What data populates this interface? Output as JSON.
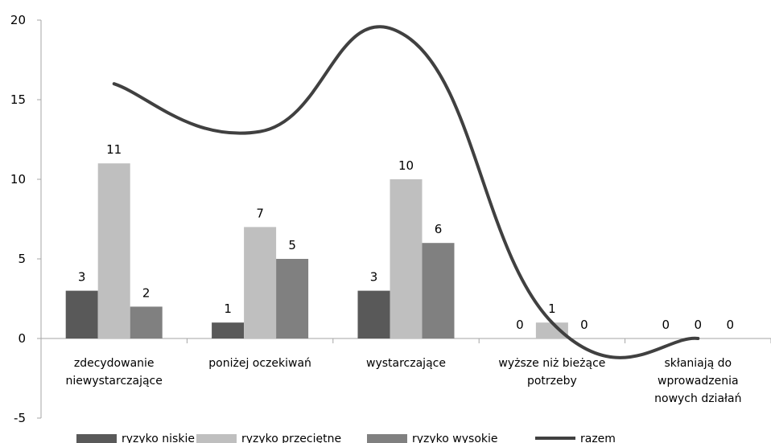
{
  "colors": {
    "ryzyko_niskie": "#595959",
    "ryzyko_przecietne": "#bfbfbf",
    "ryzyko_wysokie": "#808080",
    "razem": "#404040",
    "axis": "#a6a6a6"
  },
  "chart_data": {
    "type": "bar",
    "title": "",
    "xlabel": "",
    "ylabel": "",
    "ylim": [
      -5,
      20
    ],
    "yticks": [
      "-5",
      "0",
      "5",
      "10",
      "15",
      "20"
    ],
    "grid": false,
    "legend_position": "bottom",
    "categories": [
      [
        "zdecydowanie",
        "niewystarczające"
      ],
      [
        "poniżej oczekiwań"
      ],
      [
        "wystarczające"
      ],
      [
        "wyższe niż bieżące",
        "potrzeby"
      ],
      [
        "skłaniają do",
        "wprowadzenia",
        "nowych działań"
      ]
    ],
    "series": [
      {
        "name": "ryzyko niskie",
        "type": "bar",
        "values": [
          3,
          1,
          3,
          0,
          0
        ]
      },
      {
        "name": "ryzyko przeciętne",
        "type": "bar",
        "values": [
          11,
          7,
          10,
          1,
          0
        ]
      },
      {
        "name": "ryzyko wysokie",
        "type": "bar",
        "values": [
          2,
          5,
          6,
          0,
          0
        ]
      },
      {
        "name": "razem",
        "type": "line",
        "smooth": true,
        "values": [
          16,
          13,
          19,
          1,
          0
        ]
      }
    ]
  }
}
